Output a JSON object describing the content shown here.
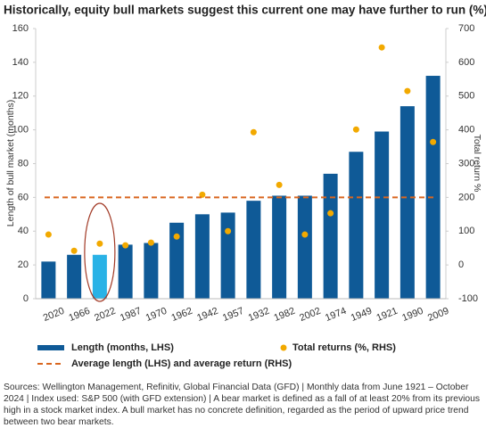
{
  "chart_data": {
    "type": "bar",
    "title": "Historically, equity bull markets suggest this current one may have further to run (%)",
    "categories": [
      "2020",
      "1966",
      "2022",
      "1987",
      "1970",
      "1962",
      "1942",
      "1957",
      "1932",
      "1982",
      "2002",
      "1974",
      "1949",
      "1921",
      "1990",
      "2009"
    ],
    "y_label": "Length of bull market (months)",
    "y2_label": "Total return %",
    "ylim": [
      0,
      160
    ],
    "yticks": [
      0,
      20,
      40,
      60,
      80,
      100,
      120,
      140,
      160
    ],
    "y2lim": [
      -100,
      700
    ],
    "y2ticks": [
      -100,
      0,
      100,
      200,
      300,
      400,
      500,
      600,
      700
    ],
    "grid": false,
    "series": [
      {
        "name": "Length (months, LHS)",
        "type": "bar",
        "color": "#0f5a97",
        "colors": [
          "#0f5a97",
          "#0f5a97",
          "#29b2e6",
          "#0f5a97",
          "#0f5a97",
          "#0f5a97",
          "#0f5a97",
          "#0f5a97",
          "#0f5a97",
          "#0f5a97",
          "#0f5a97",
          "#0f5a97",
          "#0f5a97",
          "#0f5a97",
          "#0f5a97",
          "#0f5a97"
        ],
        "values": [
          22,
          26,
          26,
          32,
          33,
          45,
          50,
          51,
          58,
          61,
          61,
          74,
          87,
          99,
          114,
          132
        ]
      },
      {
        "name": "Total returns (%, RHS)",
        "type": "scatter",
        "axis": "y2",
        "color": "#f2a900",
        "values": [
          90,
          42,
          63,
          58,
          66,
          84,
          208,
          100,
          393,
          237,
          90,
          153,
          401,
          644,
          515,
          364
        ]
      },
      {
        "name": "Average length (LHS) and average return (RHS)",
        "type": "hline",
        "color": "#d9661f",
        "value": 60
      }
    ],
    "footnote": "Sources: Wellington Management, Refinitiv, Global Financial Data (GFD)  |  Monthly data from June 1921 – October 2024  |  Index used: S&P 500 (with GFD extension)  |  A bear market is defined as a fall of at least 20% from its previous high in a stock market index. A bull market has no concrete definition, regarded as the period of upward price trend between two bear markets."
  }
}
